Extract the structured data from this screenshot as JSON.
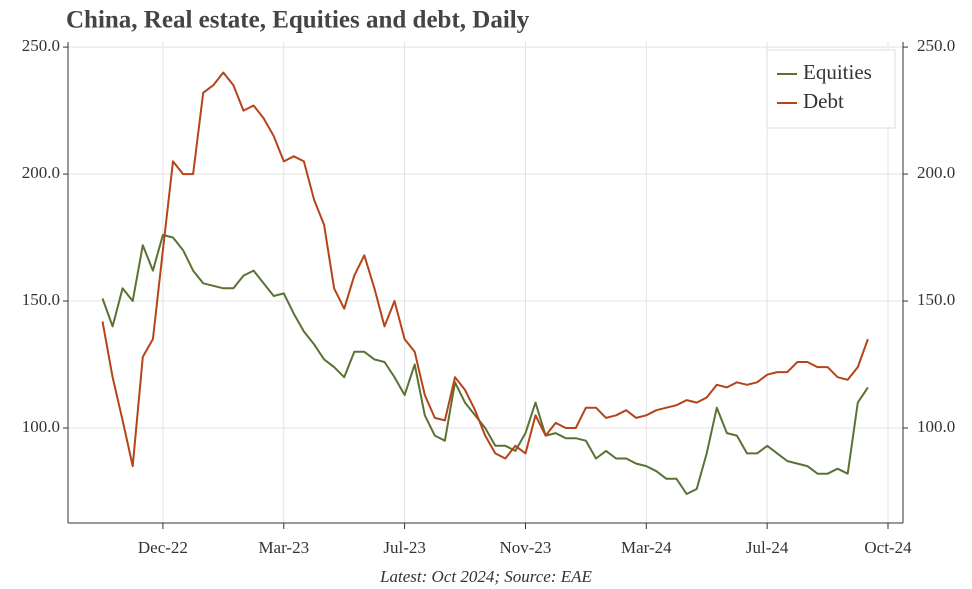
{
  "chart_data": {
    "type": "line",
    "title": "China, Real estate, Equities and debt, Daily",
    "footnote": "Latest: Oct 2024; Source: EAE",
    "categories": [
      null,
      null,
      null,
      null,
      null,
      null,
      "Dec-22",
      null,
      null,
      null,
      null,
      null,
      null,
      null,
      null,
      null,
      null,
      null,
      "Mar-23",
      null,
      null,
      null,
      null,
      null,
      null,
      null,
      null,
      null,
      null,
      null,
      "Jul-23",
      null,
      null,
      null,
      null,
      null,
      null,
      null,
      null,
      null,
      null,
      null,
      "Nov-23",
      null,
      null,
      null,
      null,
      null,
      null,
      null,
      null,
      null,
      null,
      null,
      "Mar-24",
      null,
      null,
      null,
      null,
      null,
      null,
      null,
      null,
      null,
      null,
      null,
      "Jul-24",
      null,
      null,
      null,
      null,
      null,
      null,
      null,
      null,
      null,
      null,
      null,
      "Oct-24"
    ],
    "series": [
      {
        "name": "Equities",
        "color": "#5a7233",
        "values": [
          151,
          140,
          155,
          150,
          172,
          162,
          176,
          175,
          170,
          162,
          157,
          156,
          155,
          155,
          160,
          162,
          157,
          152,
          153,
          145,
          138,
          133,
          127,
          124,
          120,
          130,
          130,
          127,
          126,
          120,
          113,
          125,
          105,
          97,
          95,
          118,
          110,
          105,
          100,
          93,
          93,
          91,
          98,
          110,
          97,
          98,
          96,
          96,
          95,
          88,
          91,
          88,
          88,
          86,
          85,
          83,
          80,
          80,
          74,
          76,
          90,
          108,
          98,
          97,
          90,
          90,
          93,
          90,
          87,
          86,
          85,
          82,
          82,
          84,
          82,
          110,
          116,
          null,
          null
        ]
      },
      {
        "name": "Debt",
        "color": "#b5441a",
        "values": [
          142,
          120,
          103,
          85,
          128,
          135,
          170,
          205,
          200,
          200,
          232,
          235,
          240,
          235,
          225,
          227,
          222,
          215,
          205,
          207,
          205,
          190,
          180,
          155,
          147,
          160,
          168,
          155,
          140,
          150,
          135,
          130,
          113,
          104,
          103,
          120,
          115,
          107,
          97,
          90,
          88,
          93,
          90,
          105,
          97,
          102,
          100,
          100,
          108,
          108,
          104,
          105,
          107,
          104,
          105,
          107,
          108,
          109,
          111,
          110,
          112,
          117,
          116,
          118,
          117,
          118,
          121,
          122,
          122,
          126,
          126,
          124,
          124,
          120,
          119,
          124,
          135,
          null,
          null
        ]
      }
    ],
    "ylim": [
      62.6,
      252
    ],
    "yticks": [
      {
        "value": 100,
        "label": "100.0"
      },
      {
        "value": 150,
        "label": "150.0"
      },
      {
        "value": 200,
        "label": "200.0"
      },
      {
        "value": 250,
        "label": "250.0"
      }
    ],
    "y2lim": [
      62.6,
      252
    ],
    "y2ticks": [
      {
        "value": 100,
        "label": "100.0"
      },
      {
        "value": 150,
        "label": "150.0"
      },
      {
        "value": 200,
        "label": "200.0"
      },
      {
        "value": 250,
        "label": "250.0"
      }
    ],
    "grid": true,
    "legend": "top-right"
  }
}
